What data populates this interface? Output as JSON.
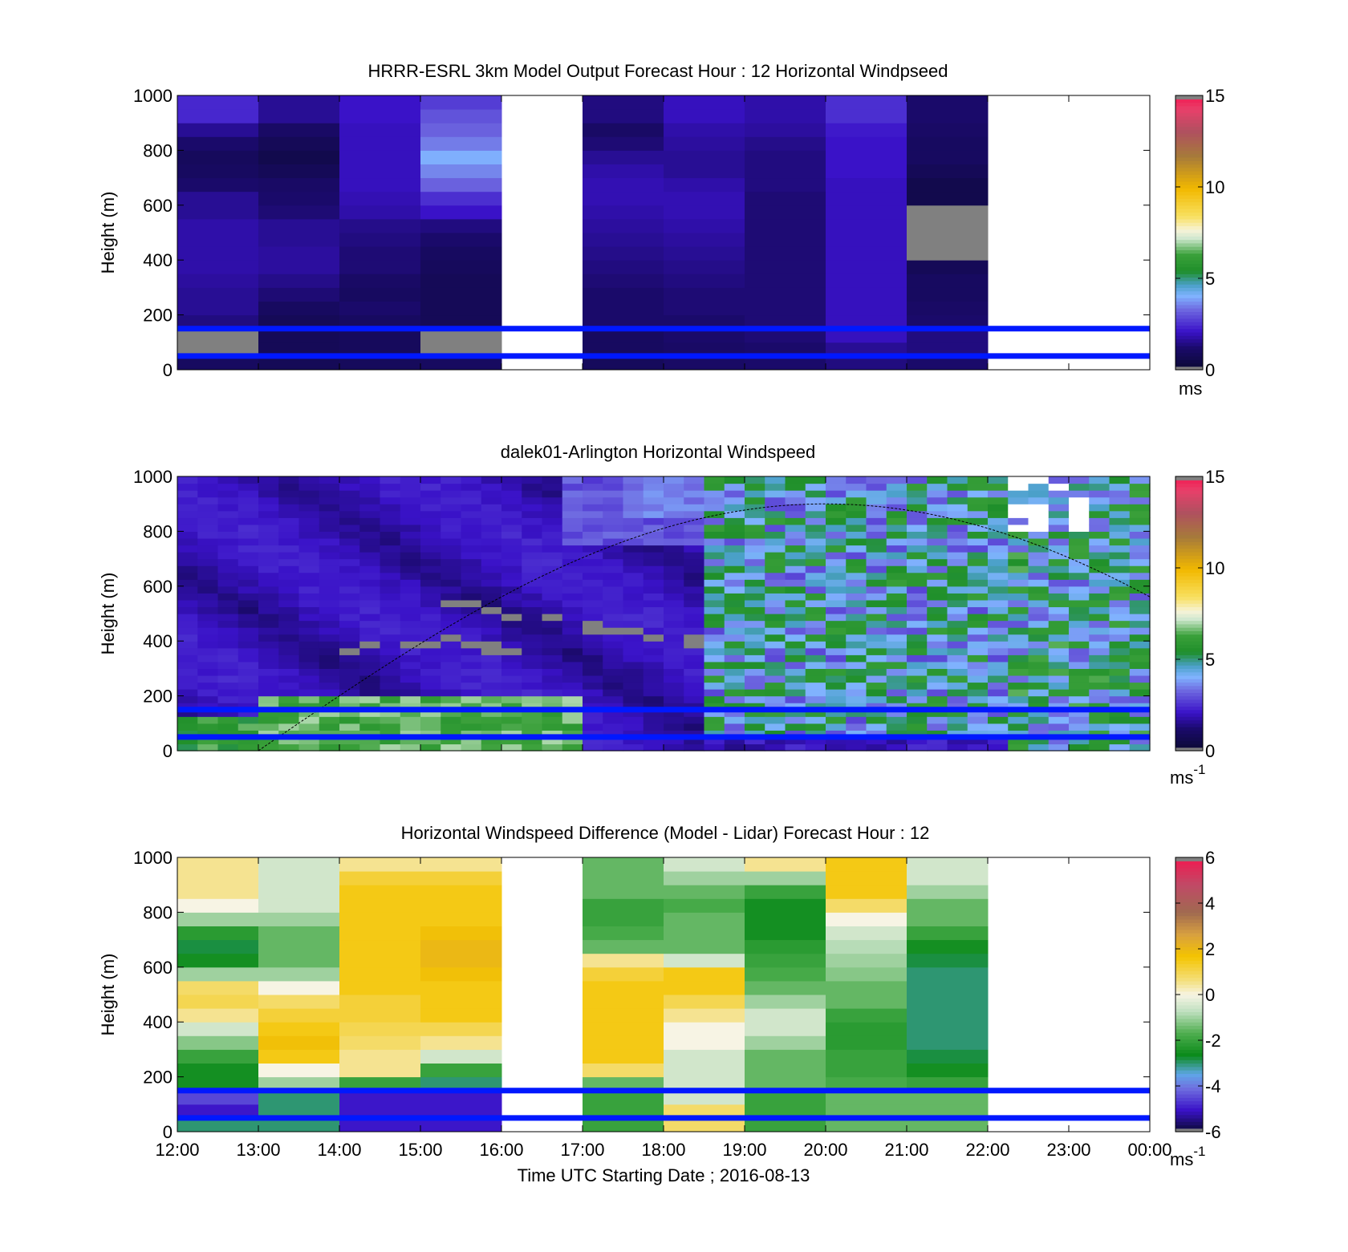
{
  "figure": {
    "xlabel": "Time UTC  Starting Date ; 2016-08-13",
    "x_tick_labels": [
      "12:00",
      "13:00",
      "14:00",
      "15:00",
      "16:00",
      "17:00",
      "18:00",
      "19:00",
      "20:00",
      "21:00",
      "22:00",
      "23:00",
      "00:00"
    ]
  },
  "chart_data": [
    {
      "type": "heatmap",
      "title": "HRRR-ESRL 3km Model Output   Forecast Hour : 12 Horizontal Windpseed",
      "xlabel": "",
      "ylabel": "Height (m)",
      "x_categories": [
        "12:00",
        "13:00",
        "14:00",
        "15:00",
        "16:00",
        "17:00",
        "18:00",
        "19:00",
        "20:00",
        "21:00",
        "22:00",
        "23:00"
      ],
      "y_ticks": [
        0,
        200,
        400,
        600,
        800,
        1000
      ],
      "ylim": [
        0,
        1000
      ],
      "levels_m": [
        25,
        75,
        125,
        175,
        225,
        275,
        325,
        375,
        425,
        475,
        525,
        575,
        625,
        675,
        725,
        775,
        825,
        875,
        925,
        975
      ],
      "colorbar": {
        "ticks": [
          0,
          5,
          10,
          15
        ],
        "range": [
          0,
          15
        ],
        "unit": "ms"
      },
      "grid": false,
      "columns": [
        [
          1.0,
          -1,
          -1,
          1.4,
          1.6,
          1.6,
          1.7,
          1.8,
          1.8,
          1.8,
          1.8,
          1.6,
          1.6,
          1.2,
          1.0,
          0.9,
          1.2,
          1.6,
          2.4,
          2.4
        ],
        [
          0.8,
          0.8,
          0.8,
          0.8,
          1.0,
          1.3,
          1.5,
          1.7,
          1.7,
          1.6,
          1.6,
          1.3,
          1.2,
          1.1,
          0.8,
          0.6,
          0.8,
          1.1,
          1.6,
          1.6
        ],
        [
          0.9,
          0.9,
          0.9,
          1.0,
          1.2,
          1.0,
          1.1,
          1.3,
          1.3,
          1.4,
          1.5,
          1.8,
          1.9,
          2.0,
          2.0,
          2.0,
          2.0,
          2.0,
          2.1,
          2.1
        ],
        [
          1.0,
          -1,
          -1,
          0.8,
          0.8,
          0.8,
          0.8,
          0.9,
          1.0,
          1.2,
          1.4,
          2.1,
          2.5,
          3.2,
          3.6,
          4.0,
          3.5,
          3.2,
          3.0,
          2.7
        ],
        null,
        [
          0.9,
          1.0,
          1.0,
          1.2,
          1.2,
          1.2,
          1.3,
          1.4,
          1.5,
          1.6,
          1.7,
          1.8,
          1.9,
          1.9,
          1.8,
          1.6,
          1.3,
          1.1,
          1.4,
          1.4
        ],
        [
          1.1,
          1.1,
          1.2,
          1.2,
          1.3,
          1.3,
          1.4,
          1.5,
          1.6,
          1.7,
          1.8,
          1.9,
          1.9,
          1.8,
          1.6,
          1.6,
          1.7,
          1.8,
          2.0,
          2.0
        ],
        [
          1.2,
          1.2,
          1.3,
          1.3,
          1.3,
          1.3,
          1.3,
          1.3,
          1.3,
          1.3,
          1.3,
          1.3,
          1.3,
          1.4,
          1.4,
          1.4,
          1.5,
          1.7,
          1.8,
          1.8
        ],
        [
          1.4,
          1.6,
          2.0,
          2.0,
          2.0,
          2.0,
          2.0,
          2.0,
          2.0,
          2.0,
          2.0,
          2.0,
          2.0,
          2.0,
          2.1,
          2.1,
          2.1,
          2.2,
          2.5,
          2.5
        ],
        [
          1.2,
          1.4,
          1.4,
          1.2,
          1.1,
          1.0,
          1.0,
          0.8,
          -1,
          -1,
          -1,
          -1,
          0.6,
          0.6,
          0.8,
          1.0,
          1.0,
          1.1,
          1.2,
          1.2
        ],
        null,
        null
      ]
    },
    {
      "type": "heatmap",
      "title": "dalek01-Arlington  Horizontal Windspeed",
      "xlabel": "",
      "ylabel": "Height (m)",
      "x_range": [
        "12:00",
        "00:00"
      ],
      "y_ticks": [
        0,
        200,
        400,
        600,
        800,
        1000
      ],
      "ylim": [
        0,
        1000
      ],
      "colorbar": {
        "ticks": [
          0,
          5,
          10,
          15
        ],
        "range": [
          0,
          15
        ],
        "unit": "ms",
        "unit_superscript": "-1"
      },
      "grid": false,
      "notes": "Continuous lidar windspeed field: ~0.5-2 ms-1 aloft before 18:00, 5-7 ms-1 (green) below 200 m between 13:00 and 17:00, grey (missing) bands near 300-550 m; 3-6 ms-1 with gaps after 19:00.",
      "curve": {
        "description": "dashed arc",
        "peak_time": "20:00",
        "peak_height_m": 900
      }
    },
    {
      "type": "heatmap",
      "title": "Horizontal Windspeed Difference (Model - Lidar) Forecast Hour : 12",
      "xlabel": "Time UTC  Starting Date ; 2016-08-13",
      "ylabel": "Height (m)",
      "x_categories": [
        "12:00",
        "13:00",
        "14:00",
        "15:00",
        "16:00",
        "17:00",
        "18:00",
        "19:00",
        "20:00",
        "21:00",
        "22:00",
        "23:00"
      ],
      "y_ticks": [
        0,
        200,
        400,
        600,
        800,
        1000
      ],
      "ylim": [
        0,
        1000
      ],
      "levels_m": [
        25,
        75,
        125,
        175,
        225,
        275,
        325,
        375,
        425,
        475,
        525,
        575,
        625,
        675,
        725,
        775,
        825,
        875,
        925,
        975
      ],
      "colorbar": {
        "ticks": [
          -6,
          -4,
          -2,
          0,
          2,
          4,
          6
        ],
        "range": [
          -6,
          6
        ],
        "unit": "ms",
        "unit_superscript": "-1"
      },
      "grid": false,
      "columns": [
        [
          -3.0,
          -5.0,
          -4.5,
          -2.5,
          -2.5,
          -2.0,
          -1.2,
          -0.5,
          0.5,
          1.0,
          0.8,
          -1.0,
          -2.5,
          -2.8,
          -2.2,
          -1.0,
          0.0,
          0.5,
          0.5,
          0.5
        ],
        [
          -3.0,
          -3.0,
          -3.0,
          -1.0,
          0.0,
          1.5,
          1.8,
          1.5,
          1.2,
          0.8,
          0.0,
          -1.0,
          -1.5,
          -1.5,
          -1.5,
          -1.0,
          -0.5,
          -0.5,
          -0.5,
          -0.5
        ],
        [
          -5.0,
          -5.0,
          -5.0,
          -2.0,
          0.5,
          0.5,
          0.8,
          1.0,
          1.2,
          1.2,
          1.5,
          1.5,
          1.5,
          1.5,
          1.5,
          1.5,
          1.5,
          1.5,
          1.2,
          0.5
        ],
        [
          -5.0,
          -5.0,
          -5.0,
          -3.0,
          -2.0,
          -0.5,
          0.5,
          1.0,
          1.5,
          1.5,
          1.5,
          1.8,
          2.0,
          2.0,
          1.8,
          1.5,
          1.5,
          1.5,
          1.2,
          0.5
        ],
        null,
        [
          -2.0,
          -2.0,
          -2.0,
          -1.5,
          0.8,
          1.5,
          1.5,
          1.5,
          1.5,
          1.5,
          1.5,
          1.2,
          0.5,
          -1.5,
          -1.8,
          -2.0,
          -2.0,
          -1.5,
          -1.5,
          -1.5
        ],
        [
          0.8,
          0.8,
          -0.5,
          -0.5,
          -0.5,
          -0.5,
          0.0,
          0.0,
          0.5,
          1.0,
          1.5,
          1.5,
          -0.5,
          -1.5,
          -1.5,
          -1.5,
          -1.8,
          -1.5,
          -1.0,
          -0.5
        ],
        [
          -2.0,
          -2.0,
          -2.0,
          -1.5,
          -1.5,
          -1.5,
          -1.0,
          -0.5,
          -0.5,
          -1.0,
          -1.5,
          -1.8,
          -2.0,
          -2.2,
          -2.5,
          -2.5,
          -2.5,
          -2.0,
          -1.0,
          0.5
        ],
        [
          -1.5,
          -1.5,
          -1.5,
          -1.8,
          -2.0,
          -2.0,
          -2.2,
          -2.2,
          -2.0,
          -1.5,
          -1.5,
          -1.2,
          -1.0,
          -0.8,
          -0.5,
          0.0,
          0.8,
          1.5,
          1.5,
          1.5
        ],
        [
          -1.5,
          -1.5,
          -1.5,
          -2.0,
          -2.5,
          -2.8,
          -3.0,
          -3.0,
          -3.0,
          -3.0,
          -3.0,
          -3.0,
          -2.8,
          -2.5,
          -2.0,
          -1.5,
          -1.5,
          -1.0,
          -0.5,
          -0.5
        ],
        null,
        null
      ]
    }
  ],
  "lines": {
    "heights_m": [
      50,
      150
    ],
    "color": "#0018ff"
  },
  "panels": [
    {
      "id": "model",
      "colorbar_unit": "ms",
      "colorbar_sup": ""
    },
    {
      "id": "lidar",
      "colorbar_unit": "ms",
      "colorbar_sup": "-1"
    },
    {
      "id": "difference",
      "colorbar_unit": "ms",
      "colorbar_sup": "-1"
    }
  ]
}
